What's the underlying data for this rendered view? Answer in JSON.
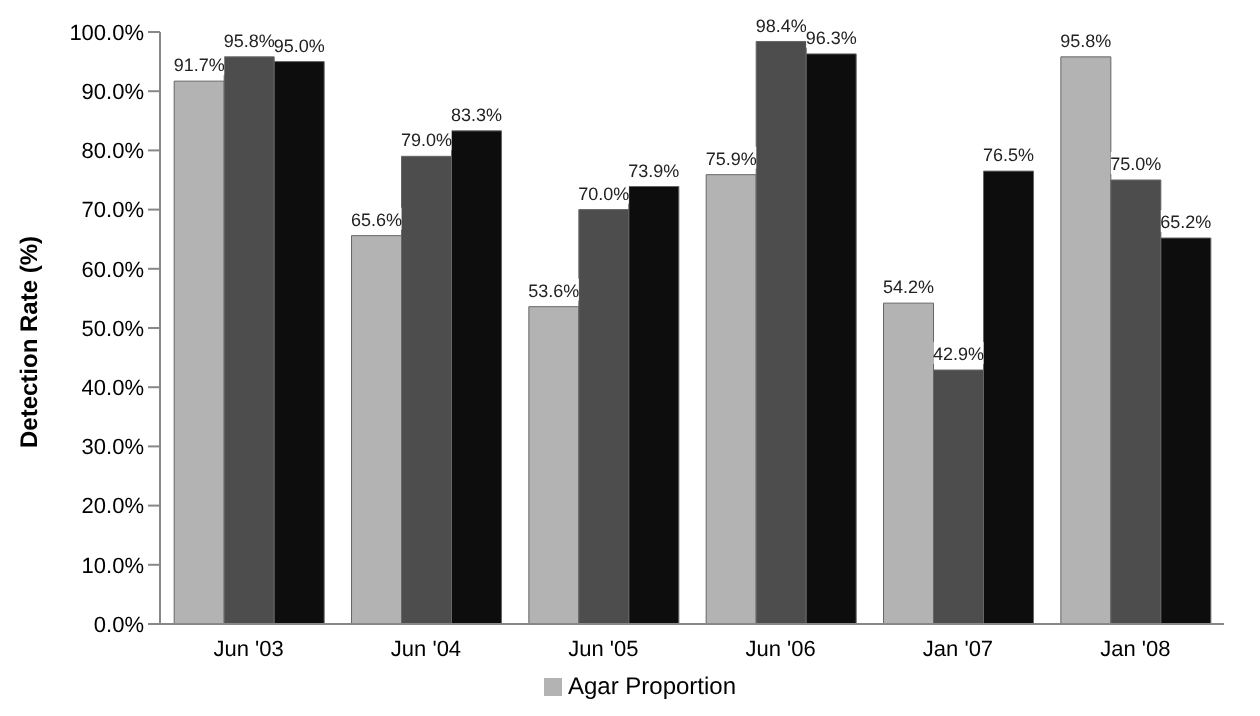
{
  "chart_data": {
    "type": "bar",
    "ylabel": "Detection Rate (%)",
    "categories": [
      "Jun '03",
      "Jun '04",
      "Jun '05",
      "Jun '06",
      "Jan '07",
      "Jan '08"
    ],
    "series": [
      {
        "name": "Agar Proportion",
        "color": "#b3b3b3",
        "values": [
          91.7,
          65.6,
          53.6,
          75.9,
          54.2,
          95.8
        ],
        "value_labels": [
          "91.7%",
          "65.6%",
          "53.6%",
          "75.9%",
          "54.2%",
          "95.8%"
        ]
      },
      {
        "color": "#4d4d4d",
        "values": [
          95.8,
          79.0,
          70.0,
          98.4,
          42.9,
          75.0
        ],
        "value_labels": [
          "95.8%",
          "79.0%",
          "70.0%",
          "98.4%",
          "42.9%",
          "75.0%"
        ]
      },
      {
        "color": "#0d0d0d",
        "values": [
          95.0,
          83.3,
          73.9,
          96.3,
          76.5,
          65.2
        ],
        "value_labels": [
          "95.0%",
          "83.3%",
          "73.9%",
          "96.3%",
          "76.5%",
          "65.2%"
        ]
      }
    ],
    "ylim": [
      0,
      100
    ],
    "yticks": [
      {
        "value": 0,
        "label": "0.0%"
      },
      {
        "value": 10,
        "label": "10.0%"
      },
      {
        "value": 20,
        "label": "20.0%"
      },
      {
        "value": 30,
        "label": "30.0%"
      },
      {
        "value": 40,
        "label": "40.0%"
      },
      {
        "value": 50,
        "label": "50.0%"
      },
      {
        "value": 60,
        "label": "60.0%"
      },
      {
        "value": 70,
        "label": "70.0%"
      },
      {
        "value": 80,
        "label": "80.0%"
      },
      {
        "value": 90,
        "label": "90.0%"
      },
      {
        "value": 100,
        "label": "100.0%"
      }
    ],
    "legend": "bottom"
  }
}
